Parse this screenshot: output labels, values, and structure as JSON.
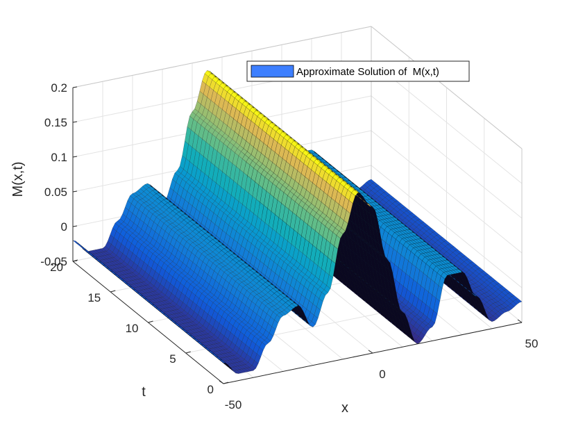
{
  "chart_data": {
    "type": "surface",
    "title": "",
    "legend": {
      "label": "Approximate Solution of  M(x,t)",
      "placement": "top-right",
      "swatch_color": "#3d7fff"
    },
    "x_axis": {
      "label": "x",
      "range": [
        -50,
        50
      ],
      "ticks": [
        "-50",
        "0",
        "50"
      ]
    },
    "t_axis": {
      "label": "t",
      "range": [
        0,
        20
      ],
      "ticks": [
        "0",
        "5",
        "10",
        "15",
        "20"
      ]
    },
    "z_axis": {
      "label": "M(x,t)",
      "range": [
        -0.05,
        0.2
      ],
      "ticks": [
        "-0.05",
        "0",
        "0.05",
        "0.1",
        "0.15",
        "0.2"
      ]
    },
    "grid": true,
    "colormap": "parula",
    "surface": {
      "description_values": "traveling wave profile, independent of t",
      "x": [
        -50,
        -45,
        -40,
        -35,
        -30,
        -25,
        -20,
        -15,
        -10,
        -5,
        0,
        5,
        10,
        15,
        20,
        25,
        30,
        35,
        40,
        45,
        50
      ],
      "M": [
        -0.02,
        -0.04,
        -0.04,
        -0.005,
        0.03,
        0.04,
        0.005,
        0.05,
        0.13,
        0.185,
        0.16,
        0.08,
        0.0,
        -0.05,
        -0.03,
        0.04,
        0.04,
        0.0,
        -0.04,
        -0.03,
        -0.02
      ]
    }
  }
}
